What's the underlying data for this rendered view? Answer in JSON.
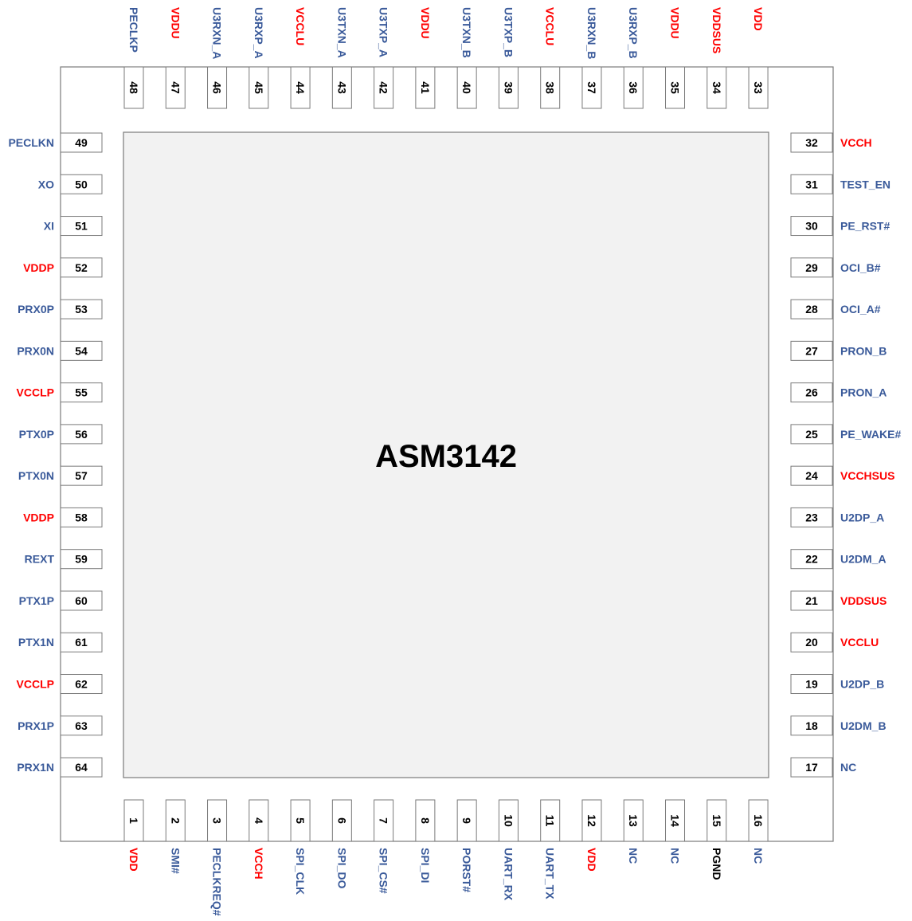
{
  "chip": {
    "name": "ASM3142"
  },
  "colors": {
    "signal": "#3A5A9A",
    "power": "#FF0000",
    "ground": "#000000"
  },
  "pins": {
    "top": [
      {
        "num": "48",
        "name": "PECLKP",
        "kind": "signal"
      },
      {
        "num": "47",
        "name": "VDDU",
        "kind": "power"
      },
      {
        "num": "46",
        "name": "U3RXN_A",
        "kind": "signal"
      },
      {
        "num": "45",
        "name": "U3RXP_A",
        "kind": "signal"
      },
      {
        "num": "44",
        "name": "VCCLU",
        "kind": "power"
      },
      {
        "num": "43",
        "name": "U3TXN_A",
        "kind": "signal"
      },
      {
        "num": "42",
        "name": "U3TXP_A",
        "kind": "signal"
      },
      {
        "num": "41",
        "name": "VDDU",
        "kind": "power"
      },
      {
        "num": "40",
        "name": "U3TXN_B",
        "kind": "signal"
      },
      {
        "num": "39",
        "name": "U3TXP_B",
        "kind": "signal"
      },
      {
        "num": "38",
        "name": "VCCLU",
        "kind": "power"
      },
      {
        "num": "37",
        "name": "U3RXN_B",
        "kind": "signal"
      },
      {
        "num": "36",
        "name": "U3RXP_B",
        "kind": "signal"
      },
      {
        "num": "35",
        "name": "VDDU",
        "kind": "power"
      },
      {
        "num": "34",
        "name": "VDDSUS",
        "kind": "power"
      },
      {
        "num": "33",
        "name": "VDD",
        "kind": "power"
      }
    ],
    "bottom": [
      {
        "num": "1",
        "name": "VDD",
        "kind": "power"
      },
      {
        "num": "2",
        "name": "SMI#",
        "kind": "signal"
      },
      {
        "num": "3",
        "name": "PECLKREQ#",
        "kind": "signal"
      },
      {
        "num": "4",
        "name": "VCCH",
        "kind": "power"
      },
      {
        "num": "5",
        "name": "SPI_CLK",
        "kind": "signal"
      },
      {
        "num": "6",
        "name": "SPI_DO",
        "kind": "signal"
      },
      {
        "num": "7",
        "name": "SPI_CS#",
        "kind": "signal"
      },
      {
        "num": "8",
        "name": "SPI_DI",
        "kind": "signal"
      },
      {
        "num": "9",
        "name": "PORST#",
        "kind": "signal"
      },
      {
        "num": "10",
        "name": "UART_RX",
        "kind": "signal"
      },
      {
        "num": "11",
        "name": "UART_TX",
        "kind": "signal"
      },
      {
        "num": "12",
        "name": "VDD",
        "kind": "power"
      },
      {
        "num": "13",
        "name": "NC",
        "kind": "signal"
      },
      {
        "num": "14",
        "name": "NC",
        "kind": "signal"
      },
      {
        "num": "15",
        "name": "PGND",
        "kind": "ground"
      },
      {
        "num": "16",
        "name": "NC",
        "kind": "signal"
      }
    ],
    "left": [
      {
        "num": "49",
        "name": "PECLKN",
        "kind": "signal"
      },
      {
        "num": "50",
        "name": "XO",
        "kind": "signal"
      },
      {
        "num": "51",
        "name": "XI",
        "kind": "signal"
      },
      {
        "num": "52",
        "name": "VDDP",
        "kind": "power"
      },
      {
        "num": "53",
        "name": "PRX0P",
        "kind": "signal"
      },
      {
        "num": "54",
        "name": "PRX0N",
        "kind": "signal"
      },
      {
        "num": "55",
        "name": "VCCLP",
        "kind": "power"
      },
      {
        "num": "56",
        "name": "PTX0P",
        "kind": "signal"
      },
      {
        "num": "57",
        "name": "PTX0N",
        "kind": "signal"
      },
      {
        "num": "58",
        "name": "VDDP",
        "kind": "power"
      },
      {
        "num": "59",
        "name": "REXT",
        "kind": "signal"
      },
      {
        "num": "60",
        "name": "PTX1P",
        "kind": "signal"
      },
      {
        "num": "61",
        "name": "PTX1N",
        "kind": "signal"
      },
      {
        "num": "62",
        "name": "VCCLP",
        "kind": "power"
      },
      {
        "num": "63",
        "name": "PRX1P",
        "kind": "signal"
      },
      {
        "num": "64",
        "name": "PRX1N",
        "kind": "signal"
      }
    ],
    "right": [
      {
        "num": "32",
        "name": "VCCH",
        "kind": "power"
      },
      {
        "num": "31",
        "name": "TEST_EN",
        "kind": "signal"
      },
      {
        "num": "30",
        "name": "PE_RST#",
        "kind": "signal"
      },
      {
        "num": "29",
        "name": "OCI_B#",
        "kind": "signal"
      },
      {
        "num": "28",
        "name": "OCI_A#",
        "kind": "signal"
      },
      {
        "num": "27",
        "name": "PRON_B",
        "kind": "signal"
      },
      {
        "num": "26",
        "name": "PRON_A",
        "kind": "signal"
      },
      {
        "num": "25",
        "name": "PE_WAKE#",
        "kind": "signal"
      },
      {
        "num": "24",
        "name": "VCCHSUS",
        "kind": "power"
      },
      {
        "num": "23",
        "name": "U2DP_A",
        "kind": "signal"
      },
      {
        "num": "22",
        "name": "U2DM_A",
        "kind": "signal"
      },
      {
        "num": "21",
        "name": "VDDSUS",
        "kind": "power"
      },
      {
        "num": "20",
        "name": "VCCLU",
        "kind": "power"
      },
      {
        "num": "19",
        "name": "U2DP_B",
        "kind": "signal"
      },
      {
        "num": "18",
        "name": "U2DM_B",
        "kind": "signal"
      },
      {
        "num": "17",
        "name": "NC",
        "kind": "signal"
      }
    ]
  }
}
